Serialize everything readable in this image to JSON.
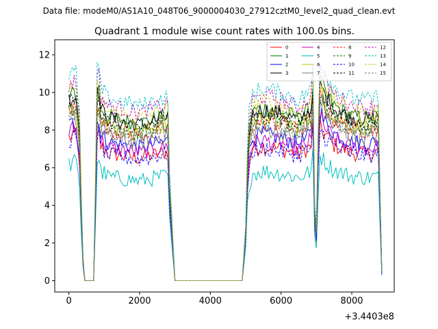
{
  "chart_data": {
    "type": "line",
    "suptitle": "Data file: modeM0/AS1A10_048T06_9000004030_27912cztM0_level2_quad_clean.evt",
    "title": "Quadrant 1 module wise count rates with 100.0s bins.",
    "xlabel": "",
    "ylabel": "",
    "x_offset_label": "+3.4403e8",
    "xlim": [
      -400,
      9200
    ],
    "ylim": [
      -0.6,
      12.8
    ],
    "x_ticks": [
      0,
      2000,
      4000,
      6000,
      8000
    ],
    "x_tick_labels": [
      "0",
      "2000",
      "4000",
      "6000",
      "8000"
    ],
    "y_ticks": [
      0,
      2,
      4,
      6,
      8,
      10,
      12
    ],
    "y_tick_labels": [
      "0",
      "2",
      "4",
      "6",
      "8",
      "10",
      "12"
    ],
    "grid": false,
    "legend_position": "top-right",
    "legend_columns": 4,
    "base_levels": [
      7.0,
      9.0,
      7.6,
      8.9,
      7.3,
      5.7,
      8.5,
      7.9,
      8.3,
      8.4,
      6.9,
      8.7,
      9.6,
      10.0,
      9.3,
      8.1
    ],
    "series": [
      {
        "name": "0",
        "color": "#ff0000",
        "dash": false
      },
      {
        "name": "1",
        "color": "#008000",
        "dash": false
      },
      {
        "name": "2",
        "color": "#0000ff",
        "dash": false
      },
      {
        "name": "3",
        "color": "#000000",
        "dash": false
      },
      {
        "name": "4",
        "color": "#bf00bf",
        "dash": false
      },
      {
        "name": "5",
        "color": "#00bfbf",
        "dash": false
      },
      {
        "name": "6",
        "color": "#bfbf00",
        "dash": false
      },
      {
        "name": "7",
        "color": "#808080",
        "dash": false
      },
      {
        "name": "8",
        "color": "#ff0000",
        "dash": true
      },
      {
        "name": "9",
        "color": "#008000",
        "dash": true
      },
      {
        "name": "10",
        "color": "#0000ff",
        "dash": true
      },
      {
        "name": "11",
        "color": "#000000",
        "dash": true
      },
      {
        "name": "12",
        "color": "#bf00bf",
        "dash": true
      },
      {
        "name": "13",
        "color": "#00bfbf",
        "dash": true
      },
      {
        "name": "14",
        "color": "#bfbf00",
        "dash": true
      },
      {
        "name": "15",
        "color": "#808080",
        "dash": true
      }
    ],
    "time_shape": [
      [
        0,
        1.08
      ],
      [
        100,
        1.1
      ],
      [
        200,
        1.1
      ],
      [
        300,
        0.9
      ],
      [
        350,
        0.45
      ],
      [
        420,
        0.0
      ],
      [
        720,
        0.0
      ],
      [
        780,
        1.05
      ],
      [
        820,
        1.18
      ],
      [
        860,
        1.12
      ],
      [
        900,
        1.02
      ],
      [
        1000,
        1.0
      ],
      [
        1100,
        0.97
      ],
      [
        1500,
        0.95
      ],
      [
        2000,
        0.93
      ],
      [
        2500,
        0.96
      ],
      [
        2800,
        0.98
      ],
      [
        2850,
        0.55
      ],
      [
        2920,
        0.3
      ],
      [
        3000,
        0.0
      ],
      [
        4900,
        0.0
      ],
      [
        5000,
        0.3
      ],
      [
        5050,
        0.7
      ],
      [
        5100,
        0.9
      ],
      [
        5200,
        1.0
      ],
      [
        5500,
        1.02
      ],
      [
        6000,
        1.0
      ],
      [
        6500,
        0.96
      ],
      [
        6850,
        1.02
      ],
      [
        6920,
        1.2
      ],
      [
        6960,
        0.15
      ],
      [
        7000,
        0.3
      ],
      [
        7080,
        1.15
      ],
      [
        7130,
        1.18
      ],
      [
        7200,
        1.12
      ],
      [
        7500,
        1.03
      ],
      [
        8000,
        0.97
      ],
      [
        8500,
        0.96
      ],
      [
        8750,
        0.98
      ],
      [
        8820,
        0.3
      ],
      [
        8850,
        0.05
      ]
    ]
  }
}
